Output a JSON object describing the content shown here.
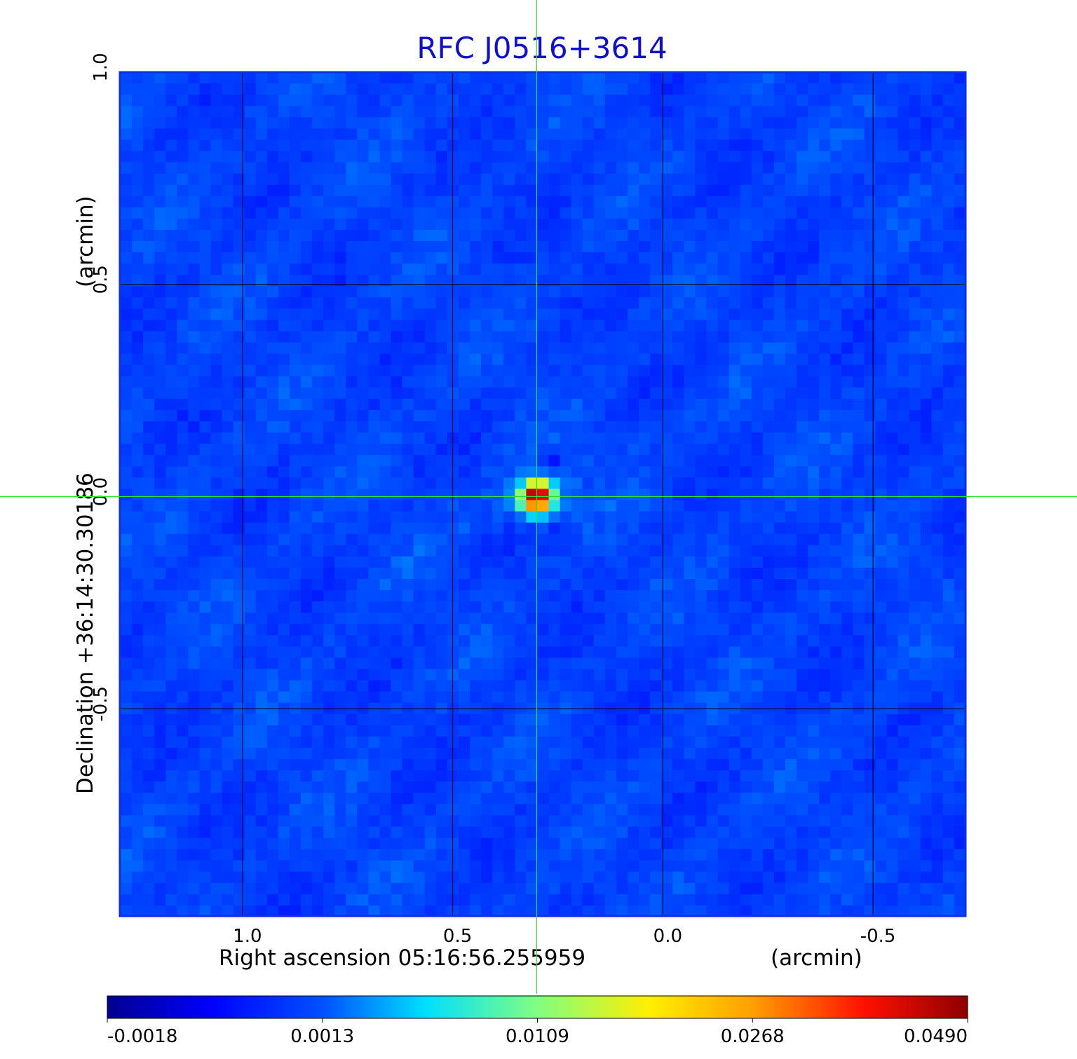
{
  "chart_data": {
    "type": "heatmap",
    "title": "RFC J0516+3614",
    "xlabel": "Right ascension  05:16:56.255959",
    "xunit": "(arcmin)",
    "ylabel": "Declination  +36:14:30.30186",
    "yunit": "(arcmin)",
    "xlim": [
      1.29,
      -0.72
    ],
    "ylim": [
      -0.99,
      1.0
    ],
    "x_reversed": true,
    "xticks": [
      {
        "value": 1.0,
        "label": "1.0"
      },
      {
        "value": 0.5,
        "label": "0.5"
      },
      {
        "value": 0.0,
        "label": "0.0"
      },
      {
        "value": -0.5,
        "label": "-0.5"
      }
    ],
    "yticks": [
      {
        "value": 1.0,
        "label": "1.0"
      },
      {
        "value": 0.5,
        "label": "0.5"
      },
      {
        "value": 0.0,
        "label": "0.0"
      },
      {
        "value": -0.5,
        "label": "-0.5"
      }
    ],
    "grid": true,
    "colormap": "jet",
    "colorbar": {
      "position": "bottom",
      "range": [
        -0.0018,
        0.049
      ],
      "ticks": [
        "-0.0018",
        "0.0013",
        "0.0109",
        "0.0268",
        "0.0490"
      ]
    },
    "background_level": 0.0008,
    "peak": {
      "x": 0.3,
      "y": 0.0,
      "value": 0.049
    },
    "crosshair": {
      "x": 0.3,
      "y": 0.0,
      "color": "#33dd33"
    },
    "colors": {
      "title": "#1010cc",
      "frame": "#1030e0",
      "grid": "#000000"
    }
  }
}
